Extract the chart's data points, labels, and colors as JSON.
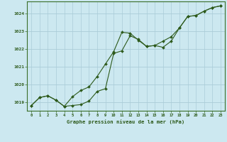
{
  "title": "Graphe pression niveau de la mer (hPa)",
  "background_color": "#cce8f0",
  "plot_bg_color": "#cce8f0",
  "line_color": "#2d5a1b",
  "grid_color": "#aaccd8",
  "axis_color": "#3a6e28",
  "text_color": "#2d5a1b",
  "xlim": [
    -0.5,
    23.5
  ],
  "ylim": [
    1018.5,
    1024.7
  ],
  "xticks": [
    0,
    1,
    2,
    3,
    4,
    5,
    6,
    7,
    8,
    9,
    10,
    11,
    12,
    13,
    14,
    15,
    16,
    17,
    18,
    19,
    20,
    21,
    22,
    23
  ],
  "yticks": [
    1019,
    1020,
    1021,
    1022,
    1023,
    1024
  ],
  "series1_x": [
    0,
    1,
    2,
    3,
    4,
    5,
    6,
    7,
    8,
    9,
    10,
    11,
    12,
    13,
    14,
    15,
    16,
    17,
    18,
    19,
    20,
    21,
    22,
    23
  ],
  "series1_y": [
    1018.8,
    1019.25,
    1019.35,
    1019.1,
    1018.75,
    1018.8,
    1018.85,
    1019.05,
    1019.6,
    1019.75,
    1021.75,
    1021.9,
    1022.75,
    1022.55,
    1022.15,
    1022.2,
    1022.1,
    1022.45,
    1023.2,
    1023.85,
    1023.9,
    1024.15,
    1024.35,
    1024.45
  ],
  "series2_x": [
    0,
    1,
    2,
    3,
    4,
    5,
    6,
    7,
    8,
    9,
    10,
    11,
    12,
    13,
    14,
    15,
    16,
    17,
    18,
    19,
    20,
    21,
    22,
    23
  ],
  "series2_y": [
    1018.8,
    1019.25,
    1019.35,
    1019.1,
    1018.75,
    1019.3,
    1019.65,
    1019.85,
    1020.45,
    1021.15,
    1021.85,
    1022.95,
    1022.9,
    1022.5,
    1022.15,
    1022.2,
    1022.45,
    1022.7,
    1023.2,
    1023.85,
    1023.9,
    1024.15,
    1024.35,
    1024.45
  ]
}
